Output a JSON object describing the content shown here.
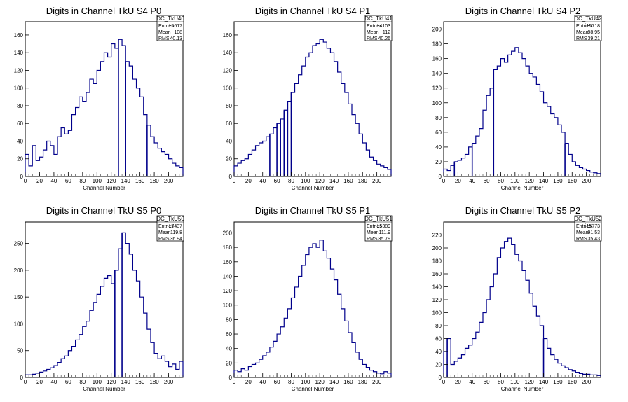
{
  "chart_data": [
    {
      "type": "histogram",
      "title": "Digits in Channel TkU S4 P0",
      "xlabel": "Channel Number",
      "ylabel": "",
      "xlim": [
        0,
        220
      ],
      "ylim": [
        0,
        175
      ],
      "xticks": [
        0,
        20,
        40,
        60,
        80,
        100,
        120,
        140,
        160,
        180,
        200
      ],
      "yticks": [
        0,
        20,
        40,
        60,
        80,
        100,
        120,
        140,
        160
      ],
      "stats": {
        "name": "DC_TkU40",
        "entries": "15617",
        "mean": "108",
        "rms": "40.13"
      },
      "x": [
        0,
        5,
        10,
        15,
        20,
        25,
        30,
        35,
        40,
        45,
        50,
        55,
        60,
        65,
        70,
        75,
        80,
        85,
        90,
        95,
        100,
        105,
        110,
        115,
        120,
        125,
        130,
        135,
        140,
        145,
        150,
        155,
        160,
        165,
        170,
        175,
        180,
        185,
        190,
        195,
        200,
        205,
        210,
        215
      ],
      "values": [
        25,
        12,
        35,
        18,
        22,
        30,
        40,
        35,
        25,
        45,
        55,
        48,
        52,
        70,
        78,
        90,
        85,
        95,
        110,
        105,
        120,
        130,
        140,
        135,
        150,
        145,
        155,
        148,
        130,
        125,
        110,
        100,
        90,
        70,
        58,
        45,
        38,
        32,
        28,
        25,
        20,
        15,
        12,
        10
      ],
      "dips": [
        [
          130,
          0
        ],
        [
          140,
          0
        ],
        [
          170,
          0
        ]
      ]
    },
    {
      "type": "histogram",
      "title": "Digits in Channel TkU S4 P1",
      "xlabel": "Channel Number",
      "ylabel": "",
      "xlim": [
        0,
        220
      ],
      "ylim": [
        0,
        175
      ],
      "xticks": [
        0,
        20,
        40,
        60,
        80,
        100,
        120,
        140,
        160,
        180,
        200
      ],
      "yticks": [
        0,
        20,
        40,
        60,
        80,
        100,
        120,
        140,
        160
      ],
      "stats": {
        "name": "DC_TkU41",
        "entries": "14103",
        "mean": "112",
        "rms": "40.26"
      },
      "x": [
        0,
        5,
        10,
        15,
        20,
        25,
        30,
        35,
        40,
        45,
        50,
        55,
        60,
        65,
        70,
        75,
        80,
        85,
        90,
        95,
        100,
        105,
        110,
        115,
        120,
        125,
        130,
        135,
        140,
        145,
        150,
        155,
        160,
        165,
        170,
        175,
        180,
        185,
        190,
        195,
        200,
        205,
        210,
        215
      ],
      "values": [
        12,
        15,
        18,
        20,
        25,
        30,
        35,
        38,
        40,
        45,
        48,
        55,
        60,
        65,
        75,
        85,
        95,
        105,
        115,
        125,
        135,
        140,
        148,
        150,
        155,
        152,
        145,
        140,
        130,
        118,
        105,
        95,
        82,
        70,
        60,
        48,
        38,
        30,
        22,
        18,
        14,
        12,
        10,
        8
      ],
      "dips": [
        [
          50,
          0
        ],
        [
          60,
          0
        ],
        [
          65,
          0
        ],
        [
          70,
          0
        ],
        [
          75,
          0
        ],
        [
          80,
          0
        ]
      ]
    },
    {
      "type": "histogram",
      "title": "Digits in Channel TkU S4 P2",
      "xlabel": "Channel Number",
      "ylabel": "",
      "xlim": [
        0,
        220
      ],
      "ylim": [
        0,
        210
      ],
      "xticks": [
        0,
        20,
        40,
        60,
        80,
        100,
        120,
        140,
        160,
        180,
        200
      ],
      "yticks": [
        0,
        20,
        40,
        60,
        80,
        100,
        120,
        140,
        160,
        180,
        200
      ],
      "stats": {
        "name": "DC_TkU42",
        "entries": "15718",
        "mean": "98.95",
        "rms": "39.21"
      },
      "x": [
        0,
        5,
        10,
        15,
        20,
        25,
        30,
        35,
        40,
        45,
        50,
        55,
        60,
        65,
        70,
        75,
        80,
        85,
        90,
        95,
        100,
        105,
        110,
        115,
        120,
        125,
        130,
        135,
        140,
        145,
        150,
        155,
        160,
        165,
        170,
        175,
        180,
        185,
        190,
        195,
        200,
        205,
        210,
        215
      ],
      "values": [
        10,
        8,
        15,
        20,
        22,
        25,
        30,
        40,
        45,
        55,
        65,
        90,
        110,
        120,
        145,
        150,
        160,
        155,
        165,
        170,
        175,
        168,
        160,
        150,
        140,
        135,
        125,
        115,
        100,
        95,
        85,
        80,
        70,
        60,
        45,
        30,
        20,
        15,
        12,
        10,
        8,
        6,
        5,
        4
      ],
      "dips": [
        [
          15,
          0
        ],
        [
          40,
          0
        ],
        [
          70,
          0
        ],
        [
          170,
          0
        ]
      ]
    },
    {
      "type": "histogram",
      "title": "Digits in Channel TkU S5 P0",
      "xlabel": "Channel Number",
      "ylabel": "",
      "xlim": [
        0,
        220
      ],
      "ylim": [
        0,
        290
      ],
      "xticks": [
        0,
        20,
        40,
        60,
        80,
        100,
        120,
        140,
        160,
        180,
        200
      ],
      "yticks": [
        0,
        50,
        100,
        150,
        200,
        250
      ],
      "stats": {
        "name": "DC_TkU50",
        "entries": "17437",
        "mean": "119.8",
        "rms": "36.94"
      },
      "x": [
        0,
        5,
        10,
        15,
        20,
        25,
        30,
        35,
        40,
        45,
        50,
        55,
        60,
        65,
        70,
        75,
        80,
        85,
        90,
        95,
        100,
        105,
        110,
        115,
        120,
        125,
        130,
        135,
        140,
        145,
        150,
        155,
        160,
        165,
        170,
        175,
        180,
        185,
        190,
        195,
        200,
        205,
        210,
        215
      ],
      "values": [
        5,
        5,
        6,
        8,
        10,
        12,
        15,
        18,
        22,
        28,
        35,
        40,
        50,
        58,
        70,
        80,
        95,
        105,
        125,
        140,
        155,
        170,
        185,
        190,
        175,
        200,
        240,
        270,
        250,
        230,
        200,
        180,
        150,
        120,
        90,
        65,
        45,
        35,
        40,
        30,
        20,
        25,
        15,
        30
      ],
      "dips": [
        [
          125,
          0
        ],
        [
          135,
          0
        ]
      ]
    },
    {
      "type": "histogram",
      "title": "Digits in Channel TkU S5 P1",
      "xlabel": "Channel Number",
      "ylabel": "",
      "xlim": [
        0,
        220
      ],
      "ylim": [
        0,
        215
      ],
      "xticks": [
        0,
        20,
        40,
        60,
        80,
        100,
        120,
        140,
        160,
        180,
        200
      ],
      "yticks": [
        0,
        20,
        40,
        60,
        80,
        100,
        120,
        140,
        160,
        180,
        200
      ],
      "stats": {
        "name": "DC_TkU51",
        "entries": "15389",
        "mean": "111.9",
        "rms": "35.79"
      },
      "x": [
        0,
        5,
        10,
        15,
        20,
        25,
        30,
        35,
        40,
        45,
        50,
        55,
        60,
        65,
        70,
        75,
        80,
        85,
        90,
        95,
        100,
        105,
        110,
        115,
        120,
        125,
        130,
        135,
        140,
        145,
        150,
        155,
        160,
        165,
        170,
        175,
        180,
        185,
        190,
        195,
        200,
        205,
        210,
        215
      ],
      "values": [
        10,
        8,
        12,
        10,
        15,
        18,
        20,
        25,
        30,
        35,
        42,
        50,
        60,
        70,
        82,
        95,
        110,
        125,
        140,
        155,
        170,
        180,
        185,
        180,
        190,
        175,
        165,
        150,
        135,
        115,
        95,
        78,
        62,
        48,
        35,
        25,
        18,
        14,
        10,
        8,
        6,
        5,
        8,
        6
      ],
      "dips": []
    },
    {
      "type": "histogram",
      "title": "Digits in Channel TkU S5 P2",
      "xlabel": "Channel Number",
      "ylabel": "",
      "xlim": [
        0,
        220
      ],
      "ylim": [
        0,
        240
      ],
      "xticks": [
        0,
        20,
        40,
        60,
        80,
        100,
        120,
        140,
        160,
        180,
        200
      ],
      "yticks": [
        0,
        20,
        40,
        60,
        80,
        100,
        120,
        140,
        160,
        180,
        200,
        220
      ],
      "stats": {
        "name": "DC_TkU52",
        "entries": "15773",
        "mean": "91.53",
        "rms": "35.43"
      },
      "x": [
        0,
        5,
        10,
        15,
        20,
        25,
        30,
        35,
        40,
        45,
        50,
        55,
        60,
        65,
        70,
        75,
        80,
        85,
        90,
        95,
        100,
        105,
        110,
        115,
        120,
        125,
        130,
        135,
        140,
        145,
        150,
        155,
        160,
        165,
        170,
        175,
        180,
        185,
        190,
        195,
        200,
        205,
        210,
        215
      ],
      "values": [
        40,
        60,
        20,
        25,
        30,
        35,
        45,
        50,
        60,
        70,
        85,
        100,
        120,
        140,
        160,
        185,
        200,
        210,
        215,
        205,
        190,
        180,
        165,
        150,
        130,
        110,
        95,
        80,
        60,
        45,
        35,
        28,
        22,
        18,
        15,
        12,
        10,
        8,
        6,
        5,
        5,
        4,
        4,
        3
      ],
      "dips": [
        [
          5,
          0
        ],
        [
          140,
          0
        ]
      ]
    }
  ]
}
